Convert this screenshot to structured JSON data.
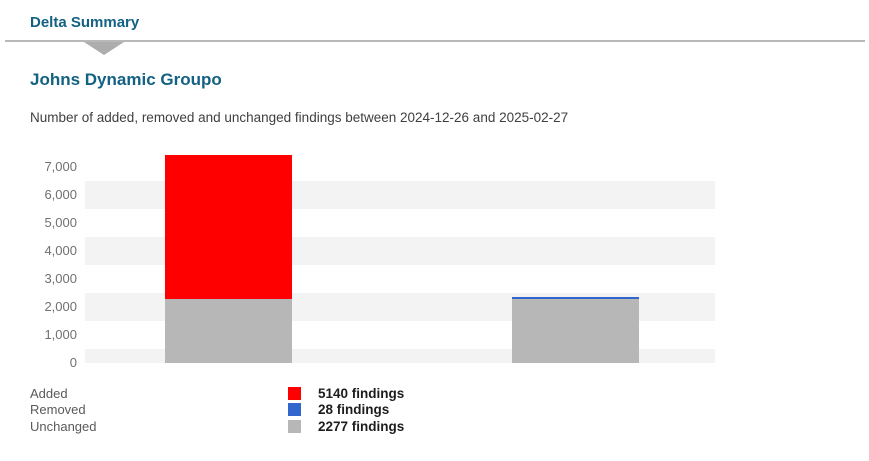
{
  "header": {
    "title": "Delta Summary"
  },
  "chart_data": {
    "type": "bar",
    "stacked": true,
    "title": "Johns Dynamic Groupo",
    "subtitle": "Number of added, removed and unchanged findings between 2024-12-26 and 2025-02-27",
    "date_from": "2024-12-26",
    "date_to": "2025-02-27",
    "categories": [
      "",
      ""
    ],
    "series": [
      {
        "name": "Added",
        "color": "#ff0000",
        "values": [
          5140,
          0
        ]
      },
      {
        "name": "Removed",
        "color": "#3366cc",
        "values": [
          0,
          28
        ]
      },
      {
        "name": "Unchanged",
        "color": "#b7b7b7",
        "values": [
          2277,
          2277
        ]
      }
    ],
    "ylim": [
      0,
      7500
    ],
    "yticks": [
      "7,000",
      "6,000",
      "5,000",
      "4,000",
      "3,000",
      "2,000",
      "1,000",
      "0"
    ],
    "grid": "striped-horizontal-bands",
    "legend_position": "bottom"
  },
  "legend": {
    "items": [
      {
        "label": "Added",
        "value_text": "5140 findings",
        "color": "#ff0000"
      },
      {
        "label": "Removed",
        "value_text": "28 findings",
        "color": "#3366cc"
      },
      {
        "label": "Unchanged",
        "value_text": "2277 findings",
        "color": "#b7b7b7"
      }
    ]
  },
  "colors": {
    "accent_title": "#136183",
    "divider": "#b8b8b8",
    "pointer": "#adadad",
    "stripe": "#f3f3f3",
    "added": "#ff0000",
    "removed": "#3366cc",
    "unchanged": "#b7b7b7"
  }
}
